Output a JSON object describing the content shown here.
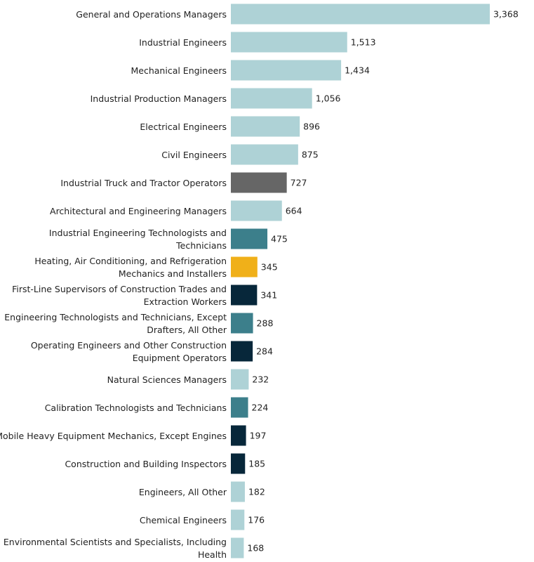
{
  "chart_data": {
    "type": "bar",
    "orientation": "horizontal",
    "title": "",
    "xlabel": "",
    "ylabel": "",
    "xlim": [
      0,
      3368
    ],
    "grid": false,
    "value_format": "thousands-comma",
    "categories": [
      [
        "General and Operations Managers"
      ],
      [
        "Industrial Engineers"
      ],
      [
        "Mechanical Engineers"
      ],
      [
        "Industrial Production Managers"
      ],
      [
        "Electrical Engineers"
      ],
      [
        "Civil Engineers"
      ],
      [
        "Industrial Truck and Tractor Operators"
      ],
      [
        "Architectural and Engineering Managers"
      ],
      [
        "Industrial Engineering Technologists and",
        "Technicians"
      ],
      [
        "Heating, Air Conditioning, and Refrigeration",
        "Mechanics and Installers"
      ],
      [
        "First-Line Supervisors of Construction Trades and",
        "Extraction Workers"
      ],
      [
        "Engineering Technologists and Technicians, Except",
        "Drafters, All Other"
      ],
      [
        "Operating Engineers and Other Construction",
        "Equipment Operators"
      ],
      [
        "Natural Sciences Managers"
      ],
      [
        "Calibration Technologists and Technicians"
      ],
      [
        "Mobile Heavy Equipment Mechanics, Except Engines"
      ],
      [
        "Construction and Building Inspectors"
      ],
      [
        "Engineers, All Other"
      ],
      [
        "Chemical Engineers"
      ],
      [
        "Environmental Scientists and Specialists, Including",
        "Health"
      ]
    ],
    "values": [
      3368,
      1513,
      1434,
      1056,
      896,
      875,
      727,
      664,
      475,
      345,
      341,
      288,
      284,
      232,
      224,
      197,
      185,
      182,
      176,
      168
    ],
    "value_labels": [
      "3,368",
      "1,513",
      "1,434",
      "1,056",
      "896",
      "875",
      "727",
      "664",
      "475",
      "345",
      "341",
      "288",
      "284",
      "232",
      "224",
      "197",
      "185",
      "182",
      "176",
      "168"
    ],
    "bar_colors": [
      "#aed2d6",
      "#aed2d6",
      "#aed2d6",
      "#aed2d6",
      "#aed2d6",
      "#aed2d6",
      "#666666",
      "#aed2d6",
      "#3c7f8b",
      "#f0b019",
      "#07273a",
      "#3c7f8b",
      "#07273a",
      "#aed2d6",
      "#3c7f8b",
      "#07273a",
      "#07273a",
      "#aed2d6",
      "#aed2d6",
      "#aed2d6"
    ]
  }
}
